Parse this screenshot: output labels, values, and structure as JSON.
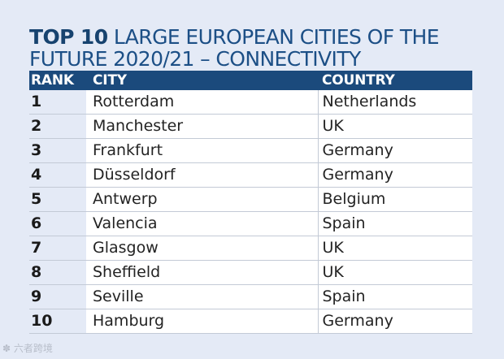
{
  "title": {
    "bold_part": "TOP 10",
    "rest": "LARGE EUROPEAN CITIES OF THE FUTURE 2020/21 – CONNECTIVITY"
  },
  "table": {
    "headers": {
      "rank": "RANK",
      "city": "CITY",
      "country": "COUNTRY"
    },
    "rows": [
      {
        "rank": "1",
        "city": "Rotterdam",
        "country": "Netherlands"
      },
      {
        "rank": "2",
        "city": "Manchester",
        "country": "UK"
      },
      {
        "rank": "3",
        "city": "Frankfurt",
        "country": "Germany"
      },
      {
        "rank": "4",
        "city": "Düsseldorf",
        "country": "Germany"
      },
      {
        "rank": "5",
        "city": "Antwerp",
        "country": "Belgium"
      },
      {
        "rank": "6",
        "city": "Valencia",
        "country": "Spain"
      },
      {
        "rank": "7",
        "city": "Glasgow",
        "country": "UK"
      },
      {
        "rank": "8",
        "city": "Sheffield",
        "country": "UK"
      },
      {
        "rank": "9",
        "city": "Seville",
        "country": "Spain"
      },
      {
        "rank": "10",
        "city": "Hamburg",
        "country": "Germany"
      }
    ]
  },
  "watermark": "六者跨境",
  "colors": {
    "page_background": "#e4eaf6",
    "header_background": "#1b4a7c",
    "title_text": "#1c4f86",
    "row_background": "#ffffff"
  }
}
